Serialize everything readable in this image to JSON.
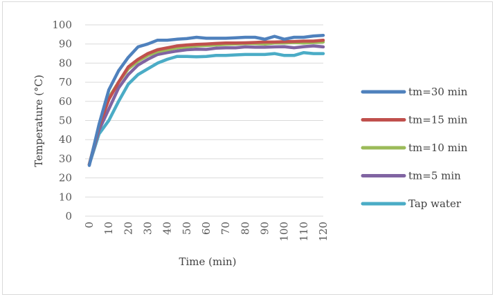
{
  "chart_data": {
    "type": "line",
    "title": "",
    "xlabel": "Time (min)",
    "ylabel": "Temperature (°C)",
    "xlim": [
      0,
      120
    ],
    "ylim": [
      0,
      100
    ],
    "x_ticks": [
      0,
      10,
      20,
      30,
      40,
      50,
      60,
      70,
      80,
      90,
      100,
      110,
      120
    ],
    "y_ticks": [
      0,
      10,
      20,
      30,
      40,
      50,
      60,
      70,
      80,
      90,
      100
    ],
    "grid": true,
    "legend_position": "right",
    "x": [
      0,
      5,
      10,
      15,
      20,
      25,
      30,
      35,
      40,
      45,
      50,
      55,
      60,
      65,
      70,
      75,
      80,
      85,
      90,
      95,
      100,
      105,
      110,
      115,
      120
    ],
    "series": [
      {
        "name": "Tap water",
        "color": "#4bacc6",
        "values": [
          27,
          43,
          50,
          60,
          69,
          74,
          77,
          80,
          82,
          83.5,
          83.5,
          83.3,
          83.5,
          84,
          84,
          84.3,
          84.5,
          84.5,
          84.5,
          85,
          84,
          84,
          85.5,
          85,
          85
        ]
      },
      {
        "name": "tm=5 min",
        "color": "#8064a2",
        "values": [
          27,
          45,
          56,
          67,
          74,
          79,
          82,
          84.5,
          85.5,
          86.3,
          87,
          87.3,
          87.2,
          87.8,
          88,
          88,
          88.5,
          88.3,
          88.3,
          88.5,
          88.6,
          88,
          88.6,
          89,
          88.5
        ]
      },
      {
        "name": "tm=10 min",
        "color": "#9bbb59",
        "values": [
          27,
          47,
          62,
          70,
          77,
          81,
          84,
          86,
          87,
          88,
          88.5,
          89,
          89.2,
          89.5,
          89.8,
          90,
          90.2,
          90.2,
          90,
          90.5,
          90.5,
          90.8,
          90.5,
          90.8,
          91
        ]
      },
      {
        "name": "tm=15 min",
        "color": "#c0504d",
        "values": [
          27,
          47,
          61,
          70,
          78,
          82,
          85,
          87,
          88,
          89,
          89.5,
          89.8,
          90,
          90.3,
          90.5,
          90.5,
          90.6,
          90.8,
          91,
          91,
          91.2,
          91.3,
          91.5,
          91.5,
          92
        ]
      },
      {
        "name": "tm=30 min",
        "color": "#4f81bd",
        "values": [
          26.5,
          48,
          66,
          76,
          83,
          88.5,
          90,
          92,
          92,
          92.5,
          92.8,
          93.5,
          93,
          93,
          93,
          93.2,
          93.5,
          93.5,
          92.5,
          94,
          92.5,
          93.5,
          93.5,
          94.2,
          94.5
        ]
      }
    ],
    "legend_order": [
      "tm=30 min",
      "tm=15 min",
      "tm=10 min",
      "tm=5 min",
      "Tap water"
    ]
  }
}
